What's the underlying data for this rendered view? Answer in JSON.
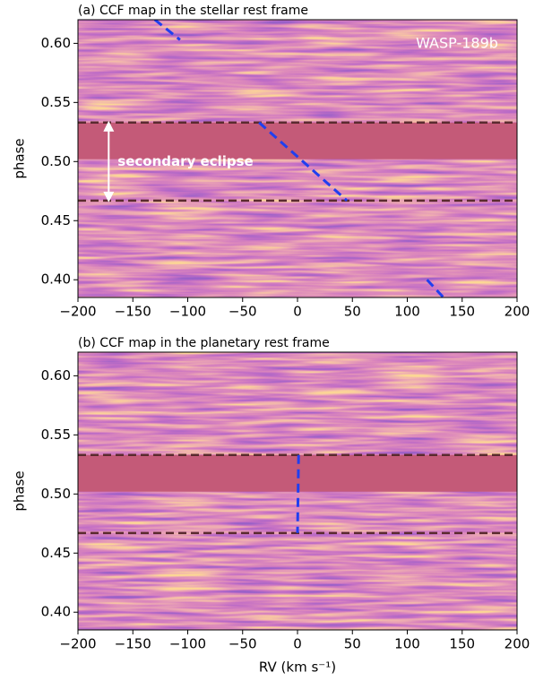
{
  "chart_data": [
    {
      "type": "ccf_map",
      "title": "(a) CCF map in the stellar rest frame",
      "ylabel": "phase",
      "xlim": [
        -200,
        200
      ],
      "ylim": [
        0.385,
        0.62
      ],
      "xticks": [
        {
          "value": -200,
          "label": "−200"
        },
        {
          "value": -150,
          "label": "−150"
        },
        {
          "value": -100,
          "label": "−100"
        },
        {
          "value": -50,
          "label": "−50"
        },
        0,
        50,
        100,
        150,
        200
      ],
      "yticks": [
        {
          "value": 0.4,
          "label": "0.40"
        },
        0.45,
        {
          "value": 0.5,
          "label": "0.50"
        },
        0.55,
        {
          "value": 0.6,
          "label": "0.60"
        }
      ],
      "eclipse_phases": [
        0.467,
        0.533
      ],
      "eclipse_color": "#5a2a2e",
      "band_color": "#c45a78",
      "annotations": [
        "WASP-189b",
        "secondary eclipse"
      ],
      "series": [
        {
          "color": "#1f3ff0",
          "x": [
            -130,
            -107,
            null,
            -35,
            45,
            null,
            118,
            133
          ],
          "values": [
            0.62,
            0.603,
            null,
            0.533,
            0.467,
            null,
            0.4,
            0.385
          ]
        }
      ]
    },
    {
      "type": "ccf_map",
      "title": "(b) CCF map in the planetary rest frame",
      "ylabel": "phase",
      "xlabel": "RV (km s⁻¹)",
      "xlim": [
        -200,
        200
      ],
      "ylim": [
        0.385,
        0.62
      ],
      "xticks": [
        {
          "value": -200,
          "label": "−200"
        },
        {
          "value": -150,
          "label": "−150"
        },
        {
          "value": -100,
          "label": "−100"
        },
        {
          "value": -50,
          "label": "−50"
        },
        0,
        50,
        100,
        150,
        200
      ],
      "yticks": [
        {
          "value": 0.4,
          "label": "0.40"
        },
        0.45,
        {
          "value": 0.5,
          "label": "0.50"
        },
        0.55,
        {
          "value": 0.6,
          "label": "0.60"
        }
      ],
      "eclipse_phases": [
        0.467,
        0.533
      ],
      "eclipse_color": "#5a2a2e",
      "band_color": "#c45a78",
      "series": [
        {
          "color": "#1f3ff0",
          "x": [
            1,
            0
          ],
          "values": [
            0.533,
            0.467
          ]
        }
      ]
    }
  ]
}
